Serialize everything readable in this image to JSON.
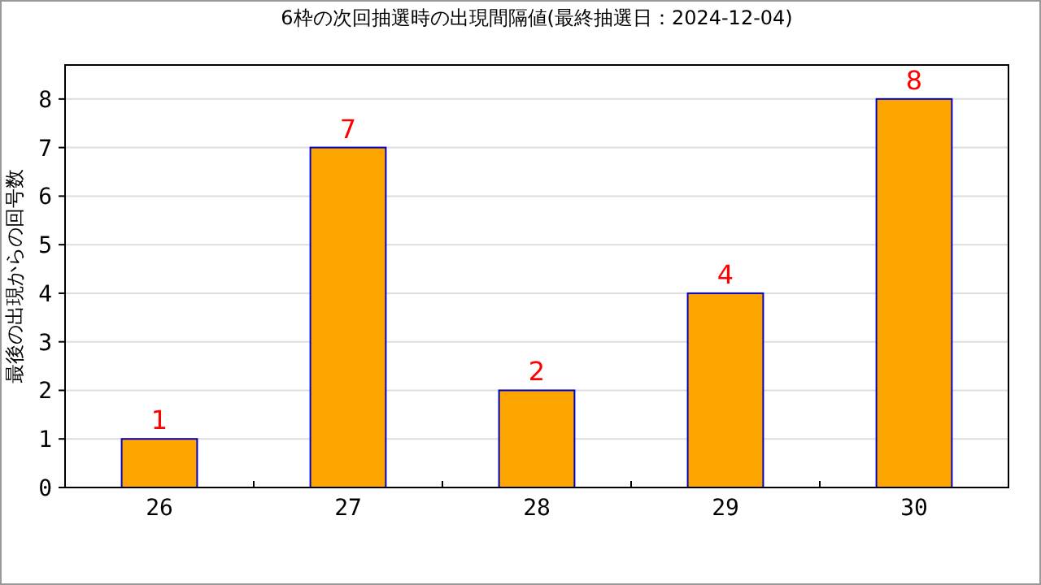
{
  "chart_data": {
    "type": "bar",
    "title": "6枠の次回抽選時の出現間隔値(最終抽選日：2024-12-04)",
    "ylabel": "最後の出現からの回号数",
    "categories": [
      "26",
      "27",
      "28",
      "29",
      "30"
    ],
    "values": [
      1,
      7,
      2,
      4,
      8
    ],
    "color": "#ffa500",
    "ylim": [
      0,
      8.7
    ],
    "yticks": [
      0,
      1,
      2,
      3,
      4,
      5,
      6,
      7,
      8
    ],
    "grid": "y",
    "data_labels": true
  }
}
